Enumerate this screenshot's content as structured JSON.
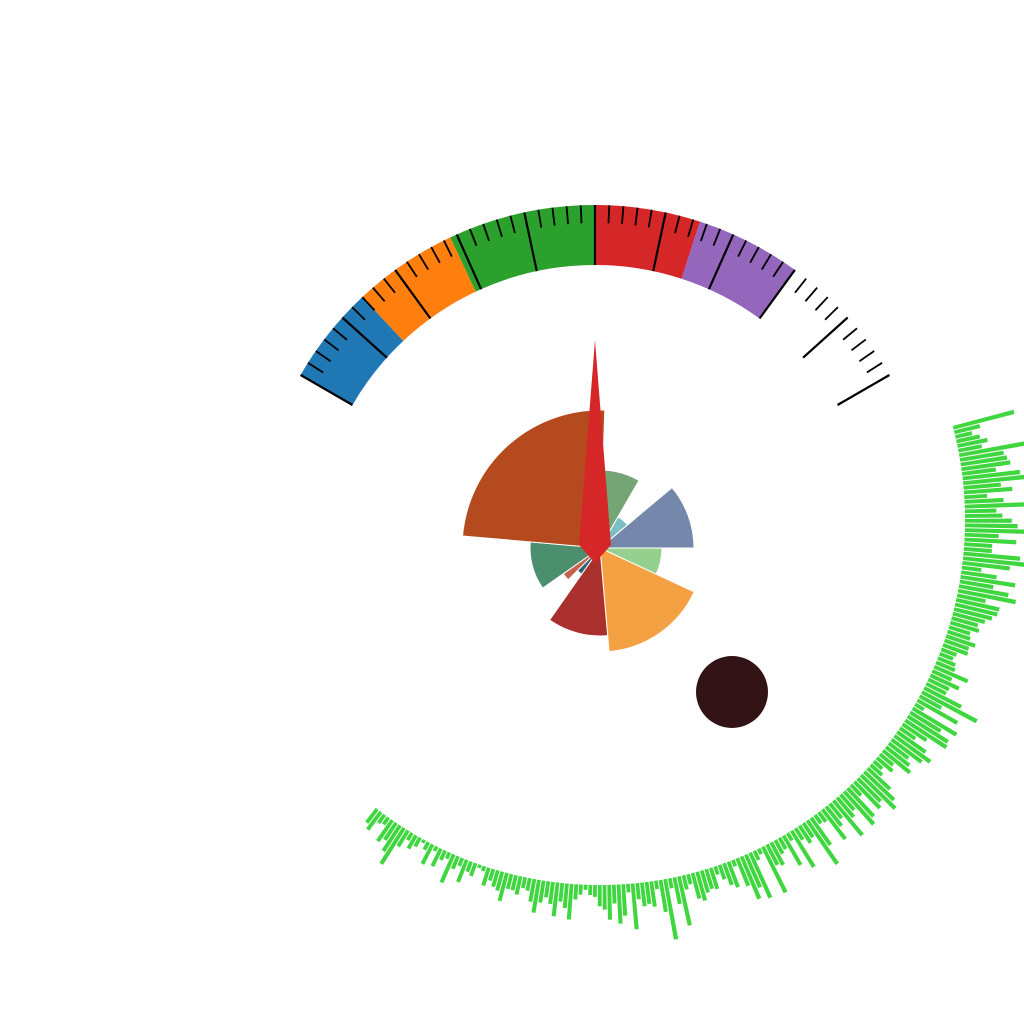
{
  "chart_data": [
    {
      "type": "gauge",
      "title": "",
      "range": [
        0,
        100
      ],
      "value": 50,
      "needle_color": "#d62728",
      "bands": [
        {
          "from": 0,
          "to": 14,
          "color": "#1f77b4"
        },
        {
          "from": 14,
          "to": 29,
          "color": "#ff7f0e"
        },
        {
          "from": 29,
          "to": 50,
          "color": "#2ca02c"
        },
        {
          "from": 50,
          "to": 65,
          "color": "#d62728"
        },
        {
          "from": 65,
          "to": 80,
          "color": "#9467bd"
        }
      ],
      "major_tick_step": 10,
      "minor_tick_step": 2,
      "tick_labels": []
    },
    {
      "type": "polar-bar",
      "title": "",
      "segments": [
        {
          "start_deg": 0,
          "end_deg": 30,
          "value": 0.78,
          "color": "#76a575"
        },
        {
          "start_deg": 30,
          "end_deg": 50,
          "value": 0.36,
          "color": "#7bbfc4"
        },
        {
          "start_deg": 50,
          "end_deg": 90,
          "value": 0.94,
          "color": "#7588ab"
        },
        {
          "start_deg": 90,
          "end_deg": 115,
          "value": 0.62,
          "color": "#95d08f"
        },
        {
          "start_deg": 115,
          "end_deg": 175,
          "value": 1.04,
          "color": "#f4a143"
        },
        {
          "start_deg": 175,
          "end_deg": 215,
          "value": 0.88,
          "color": "#aa302d"
        },
        {
          "start_deg": 215,
          "end_deg": 225,
          "value": 0.32,
          "color": "#2d6478"
        },
        {
          "start_deg": 225,
          "end_deg": 235,
          "value": 0.45,
          "color": "#c4634c"
        },
        {
          "start_deg": 235,
          "end_deg": 275,
          "value": 0.7,
          "color": "#4c8f6f"
        },
        {
          "start_deg": 275,
          "end_deg": 362,
          "value": 1.38,
          "color": "#b54a1e"
        }
      ]
    },
    {
      "type": "radial-bar",
      "title": "",
      "color": "#3fd63f",
      "start_deg": 75,
      "end_deg": 218,
      "values": [
        0.74,
        0.31,
        0.2,
        0.28,
        0.36,
        0.28,
        0.8,
        0.52,
        0.55,
        0.58,
        0.4,
        0.68,
        0.74,
        0.44,
        0.57,
        0.27,
        0.46,
        0.78,
        0.37,
        0.44,
        0.55,
        0.62,
        0.77,
        0.4,
        0.61,
        0.33,
        0.33,
        0.67,
        0.76,
        0.56,
        0.23,
        0.42,
        0.65,
        0.4,
        0.59,
        0.69,
        0.34,
        0.52,
        0.51,
        0.46,
        0.39,
        0.32,
        0.35,
        0.26,
        0.28,
        0.36,
        0.3,
        0.31,
        0.19,
        0.17,
        0.22,
        0.24,
        0.43,
        0.25,
        0.37,
        0.27,
        0.26,
        0.49,
        0.73,
        0.29,
        0.54,
        0.12,
        0.6,
        0.42,
        0.56,
        0.58,
        0.34,
        0.22,
        0.41,
        0.52,
        0.44,
        0.29,
        0.35,
        0.41,
        0.2,
        0.24,
        0.13,
        0.18,
        0.36,
        0.48,
        0.56,
        0.38,
        0.43,
        0.17,
        0.45,
        0.52,
        0.24,
        0.3,
        0.53,
        0.22,
        0.29,
        0.44,
        0.14,
        0.12,
        0.39,
        0.62,
        0.2,
        0.24,
        0.16,
        0.5,
        0.1,
        0.4,
        0.15,
        0.18,
        0.3,
        0.27,
        0.6,
        0.07,
        0.12,
        0.58,
        0.42,
        0.54,
        0.35,
        0.08,
        0.32,
        0.27,
        0.18,
        0.1,
        0.26,
        0.24,
        0.27,
        0.35,
        0.31,
        0.12,
        0.17,
        0.59,
        0.32,
        0.12,
        0.72,
        0.38,
        0.1,
        0.3,
        0.26,
        0.28,
        0.19,
        0.54,
        0.1,
        0.37,
        0.46,
        0.22,
        0.41,
        0.29,
        0.25,
        0.14,
        0.12,
        0.06,
        0.12,
        0.18,
        0.42,
        0.29,
        0.22,
        0.4,
        0.26,
        0.19,
        0.26,
        0.39,
        0.27,
        0.15,
        0.13,
        0.22,
        0.18,
        0.18,
        0.34,
        0.23,
        0.2,
        0.14,
        0.22,
        0.06,
        0.04,
        0.16,
        0.13,
        0.28,
        0.1,
        0.16,
        0.36,
        0.08,
        0.12,
        0.23,
        0.06,
        0.26,
        0.1,
        0.04,
        0.12,
        0.18,
        0.1,
        0.22,
        0.5,
        0.36,
        0.24,
        0.3,
        0.1,
        0.12,
        0.26,
        0.2
      ]
    },
    {
      "type": "marker",
      "shape": "circle",
      "color": "#331416"
    }
  ]
}
